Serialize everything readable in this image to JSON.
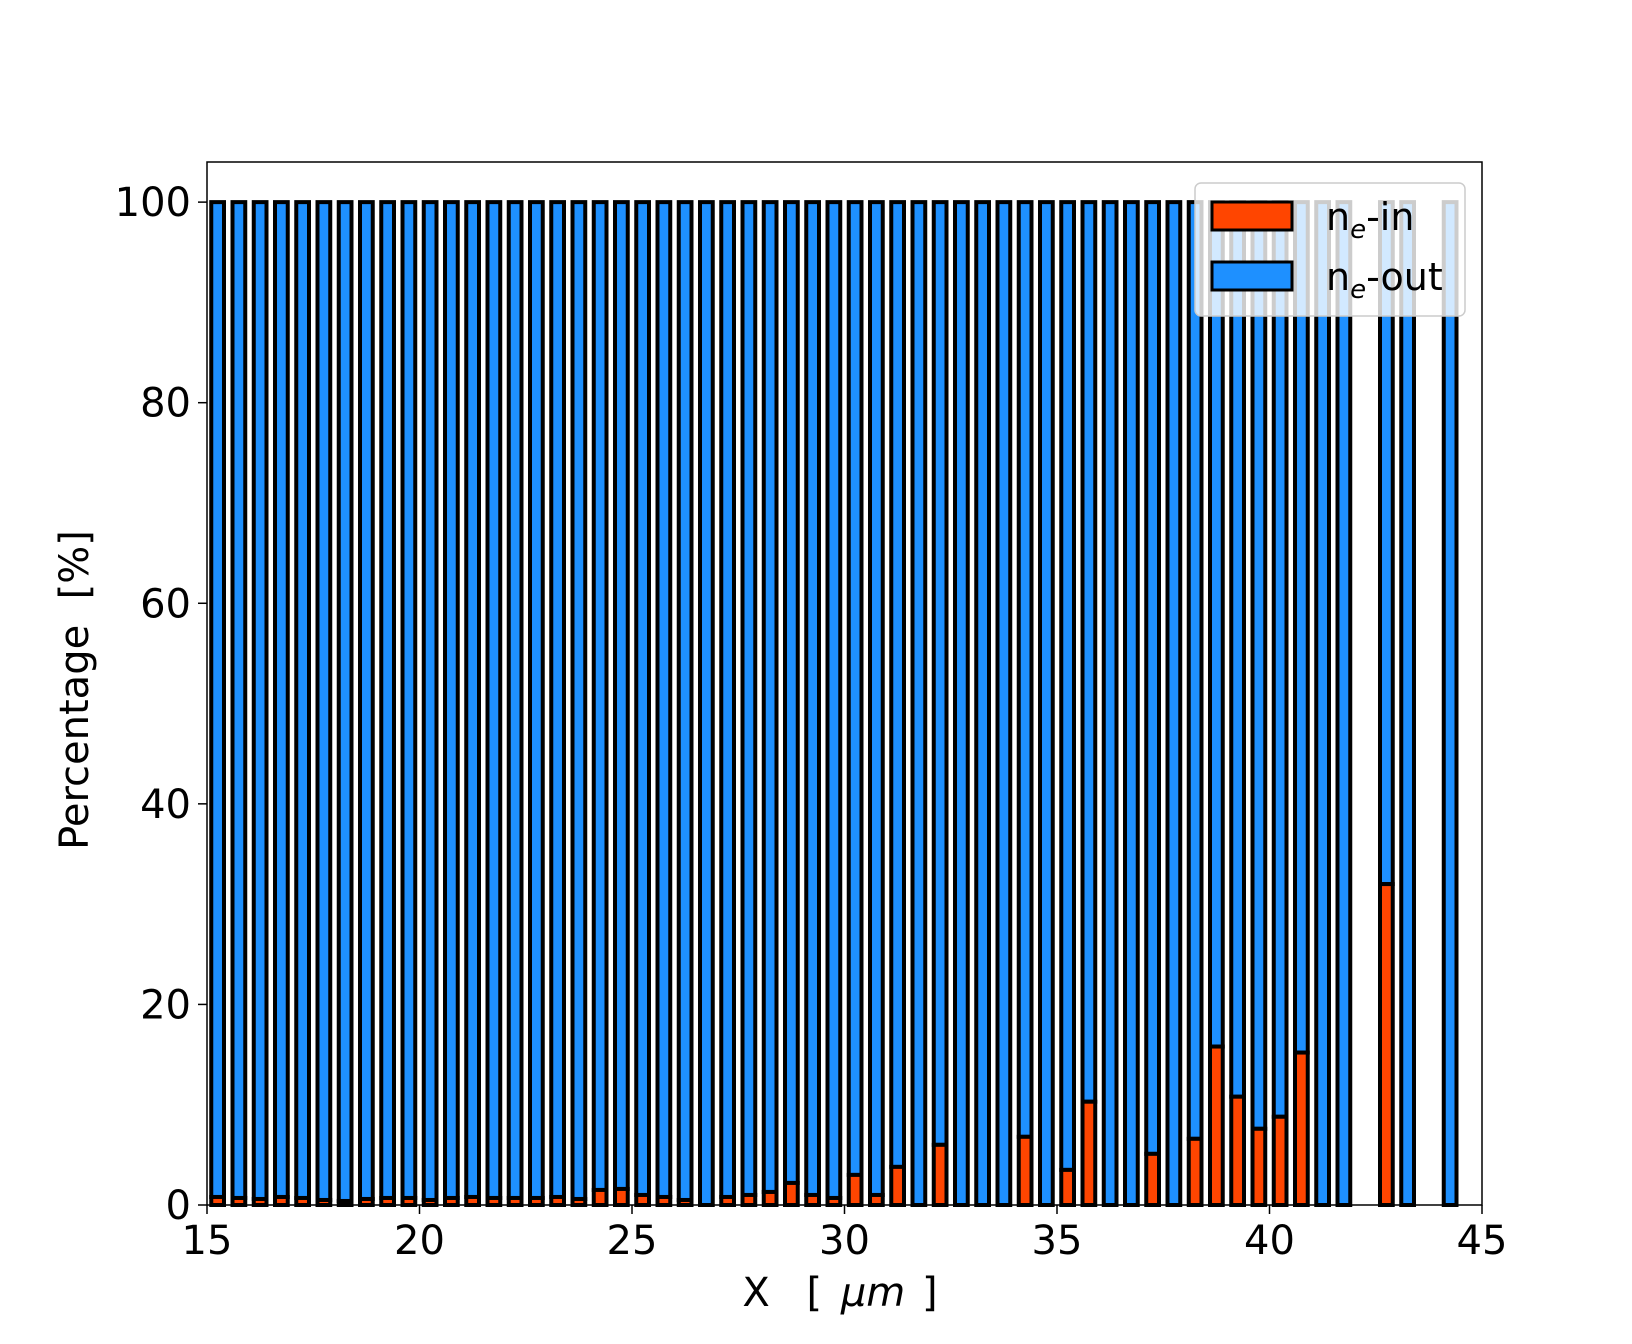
{
  "chart_data": {
    "type": "bar",
    "stacked": true,
    "xlabel": "X  [μm]",
    "xlabel_main": "X",
    "xlabel_unit_open": "[",
    "xlabel_unit_symbol": "μm",
    "xlabel_unit_close": "]",
    "ylabel": "Percentage  [%]",
    "xlim": [
      15,
      45
    ],
    "ylim": [
      0,
      104
    ],
    "xticks": [
      15,
      20,
      25,
      30,
      35,
      40,
      45
    ],
    "yticks": [
      0,
      20,
      40,
      60,
      80,
      100
    ],
    "bar_width": 0.3,
    "grid": false,
    "legend_position": "top-right",
    "legend": [
      {
        "name_main": "n",
        "name_sub": "e",
        "name_suffix": "-in",
        "color": "#ff4500"
      },
      {
        "name_main": "n",
        "name_sub": "e",
        "name_suffix": "-out",
        "color": "#1e90ff"
      }
    ],
    "x": [
      15.25,
      15.75,
      16.25,
      16.75,
      17.25,
      17.75,
      18.25,
      18.75,
      19.25,
      19.75,
      20.25,
      20.75,
      21.25,
      21.75,
      22.25,
      22.75,
      23.25,
      23.75,
      24.25,
      24.75,
      25.25,
      25.75,
      26.25,
      26.75,
      27.25,
      27.75,
      28.25,
      28.75,
      29.25,
      29.75,
      30.25,
      30.75,
      31.25,
      31.75,
      32.25,
      32.75,
      33.25,
      33.75,
      34.25,
      34.75,
      35.25,
      35.75,
      36.25,
      36.75,
      37.25,
      37.75,
      38.25,
      38.75,
      39.25,
      39.75,
      40.25,
      40.75,
      41.25,
      41.75,
      42.75,
      43.25,
      44.25
    ],
    "series": [
      {
        "name": "ne-in",
        "color": "#ff4500",
        "values": [
          0.8,
          0.7,
          0.6,
          0.8,
          0.7,
          0.5,
          0.4,
          0.6,
          0.7,
          0.7,
          0.5,
          0.7,
          0.8,
          0.7,
          0.7,
          0.7,
          0.8,
          0.6,
          1.5,
          1.6,
          1.0,
          0.8,
          0.5,
          0.0,
          0.8,
          1.0,
          1.3,
          2.2,
          1.0,
          0.7,
          3.0,
          1.0,
          3.8,
          0.0,
          6.0,
          0.0,
          0.0,
          0.0,
          6.8,
          0.0,
          3.5,
          10.3,
          0.0,
          0.0,
          5.1,
          0.0,
          6.6,
          15.8,
          10.8,
          7.6,
          8.8,
          15.2,
          0.0,
          0.0,
          32.0,
          0.0,
          0.0
        ]
      },
      {
        "name": "ne-out",
        "color": "#1e90ff",
        "values": [
          99.2,
          99.3,
          99.4,
          99.2,
          99.3,
          99.5,
          99.6,
          99.4,
          99.3,
          99.3,
          99.5,
          99.3,
          99.2,
          99.3,
          99.3,
          99.3,
          99.2,
          99.4,
          98.5,
          98.4,
          99.0,
          99.2,
          99.5,
          100.0,
          99.2,
          99.0,
          98.7,
          97.8,
          99.0,
          99.3,
          97.0,
          99.0,
          96.2,
          100.0,
          94.0,
          100.0,
          100.0,
          100.0,
          93.2,
          100.0,
          96.5,
          89.7,
          100.0,
          100.0,
          94.9,
          100.0,
          93.4,
          84.2,
          89.2,
          92.4,
          91.2,
          84.8,
          100.0,
          100.0,
          68.0,
          100.0,
          100.0
        ]
      }
    ]
  }
}
